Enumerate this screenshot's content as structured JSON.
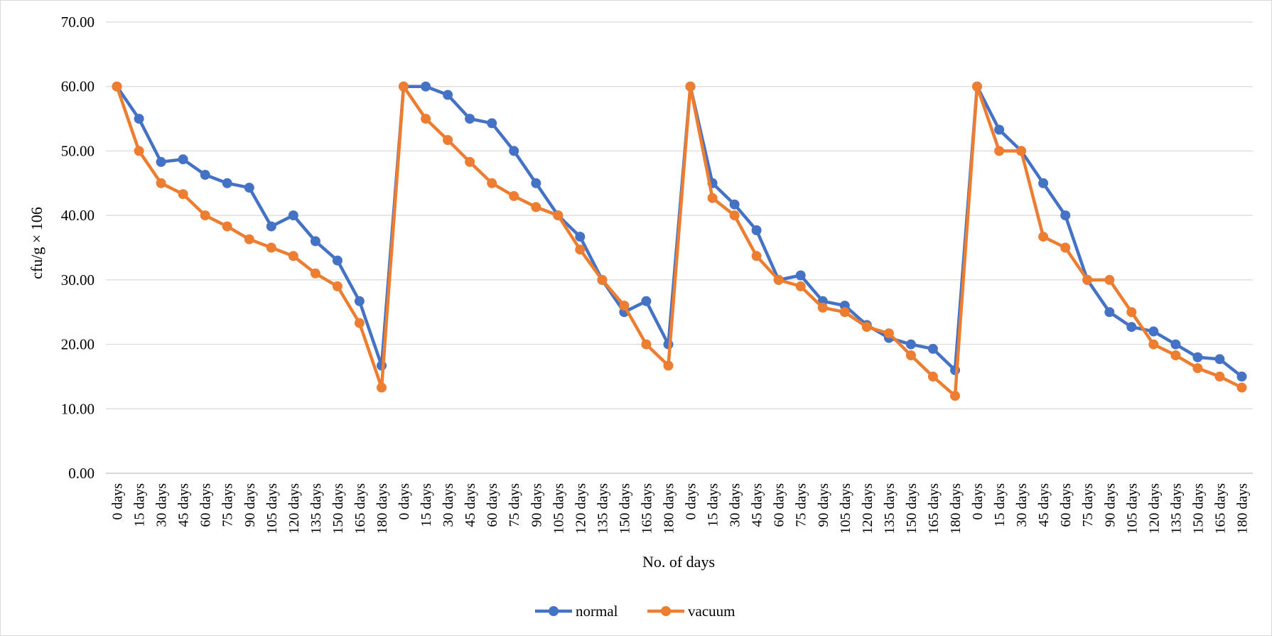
{
  "chart_data": {
    "type": "line",
    "title": "",
    "xlabel": "No. of days",
    "ylabel": "cfu/g × 106",
    "ylim": [
      0,
      70
    ],
    "yticks": [
      "0.00",
      "10.00",
      "20.00",
      "30.00",
      "40.00",
      "50.00",
      "60.00",
      "70.00"
    ],
    "grid": true,
    "legend_position": "bottom-center",
    "categories": [
      "0 days",
      "15 days",
      "30 days",
      "45 days",
      "60 days",
      "75 days",
      "90 days",
      "105 days",
      "120 days",
      "135 days",
      "150 days",
      "165 days",
      "180 days",
      "0 days",
      "15 days",
      "30 days",
      "45 days",
      "60 days",
      "75 days",
      "90 days",
      "105 days",
      "120 days",
      "135 days",
      "150 days",
      "165 days",
      "180 days",
      "0 days",
      "15 days",
      "30 days",
      "45 days",
      "60 days",
      "75 days",
      "90 days",
      "105 days",
      "120 days",
      "135 days",
      "150 days",
      "165 days",
      "180 days",
      "0 days",
      "15 days",
      "30 days",
      "45 days",
      "60 days",
      "75 days",
      "90 days",
      "105 days",
      "120 days",
      "135 days",
      "150 days",
      "165 days",
      "180 days"
    ],
    "series": [
      {
        "name": "normal",
        "color": "#4472C4",
        "values": [
          60.0,
          55.0,
          48.3,
          48.7,
          46.3,
          45.0,
          44.3,
          38.3,
          40.0,
          36.0,
          33.0,
          26.7,
          16.7,
          60.0,
          60.0,
          58.7,
          55.0,
          54.3,
          50.0,
          45.0,
          40.0,
          36.7,
          30.0,
          25.0,
          26.7,
          20.0,
          60.0,
          45.0,
          41.7,
          37.7,
          30.0,
          30.7,
          26.7,
          26.0,
          23.0,
          21.0,
          20.0,
          19.3,
          16.0,
          60.0,
          53.3,
          50.0,
          45.0,
          40.0,
          30.0,
          25.0,
          22.7,
          22.0,
          20.0,
          18.0,
          17.7,
          15.0
        ]
      },
      {
        "name": "vacuum",
        "color": "#ED7D31",
        "values": [
          60.0,
          50.0,
          45.0,
          43.3,
          40.0,
          38.3,
          36.3,
          35.0,
          33.7,
          31.0,
          29.0,
          23.3,
          13.3,
          60.0,
          55.0,
          51.7,
          48.3,
          45.0,
          43.0,
          41.3,
          40.0,
          34.7,
          30.0,
          26.0,
          20.0,
          16.7,
          60.0,
          42.7,
          40.0,
          33.7,
          30.0,
          29.0,
          25.7,
          25.0,
          22.7,
          21.7,
          18.3,
          15.0,
          12.0,
          60.0,
          50.0,
          50.0,
          36.7,
          35.0,
          30.0,
          30.0,
          25.0,
          20.0,
          18.3,
          16.3,
          15.0,
          13.3
        ]
      }
    ]
  }
}
